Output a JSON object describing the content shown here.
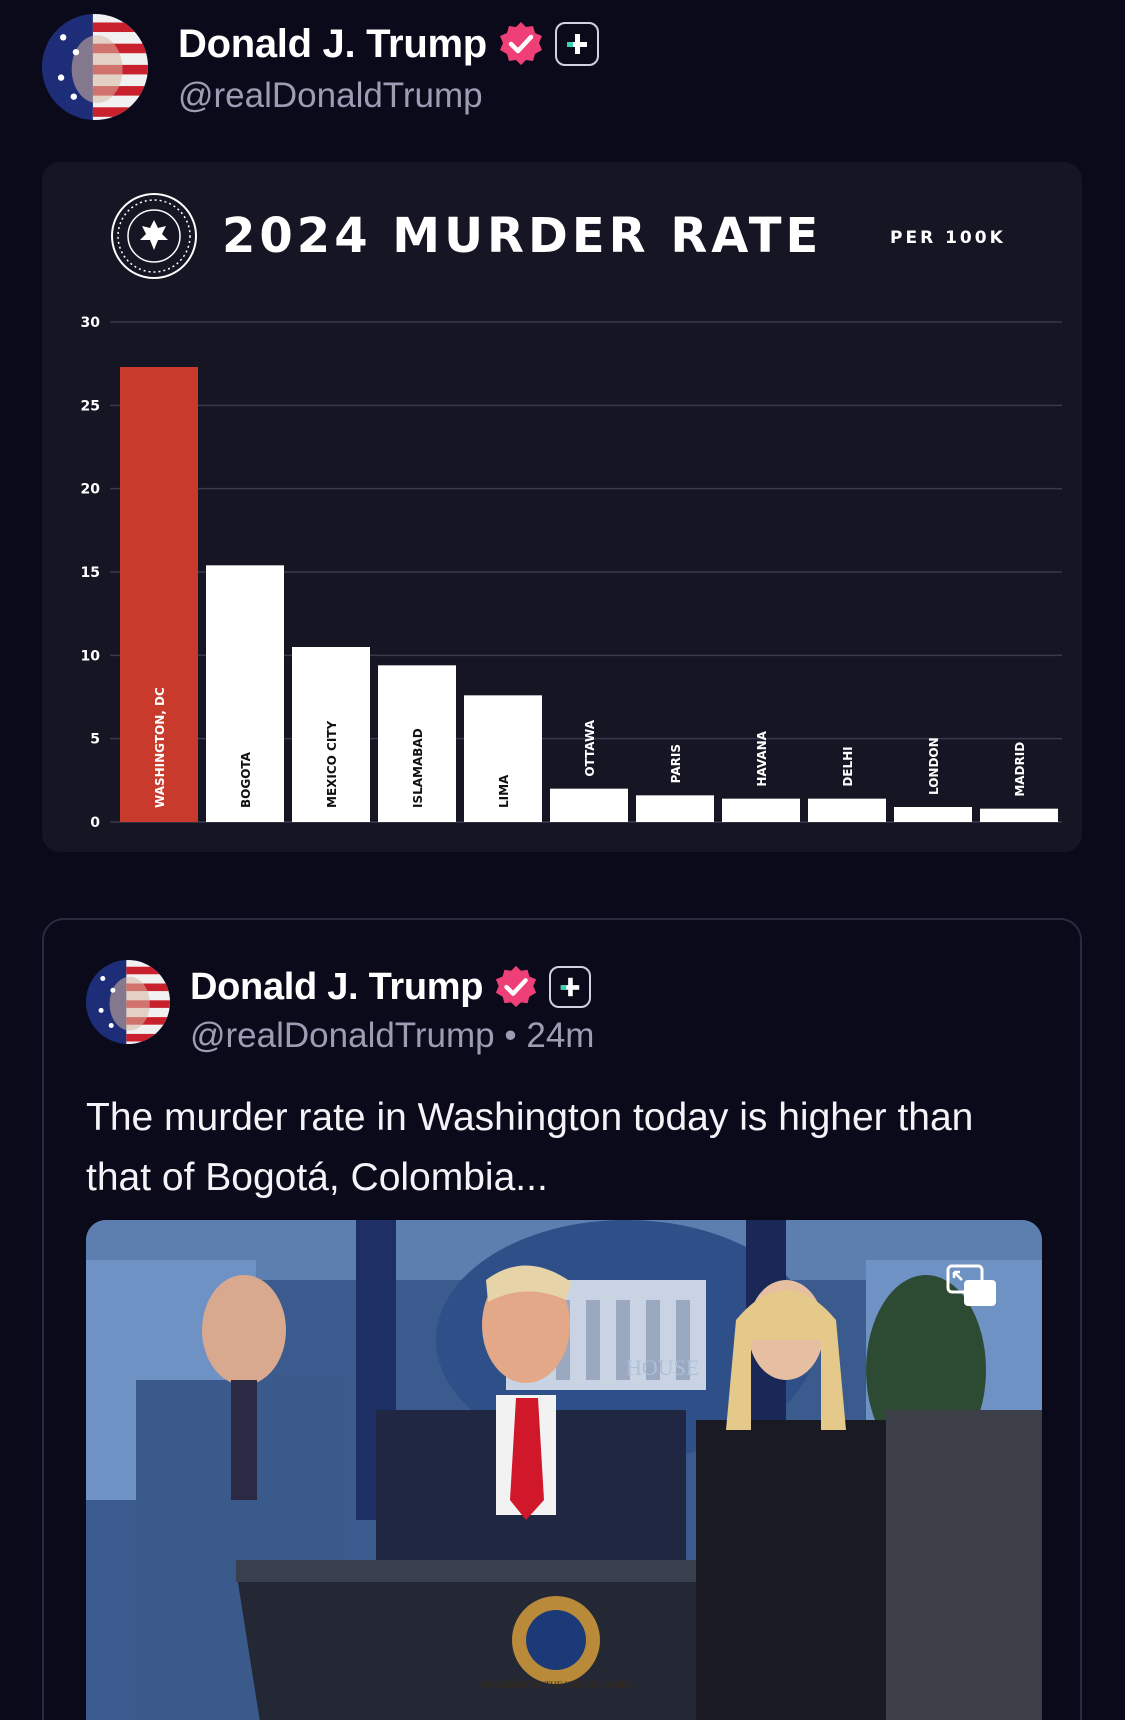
{
  "post": {
    "author": {
      "display_name": "Donald J. Trump",
      "handle": "@realDonaldTrump",
      "verified_badge_color": "#ef3f77",
      "avatar_icon": "american-flag-portrait"
    }
  },
  "chart_data": {
    "type": "bar",
    "title": "2024 MURDER RATE",
    "unit_label": "PER 100K",
    "categories": [
      "WASHINGTON, DC",
      "BOGOTA",
      "MEXICO CITY",
      "ISLAMABAD",
      "LIMA",
      "OTTAWA",
      "PARIS",
      "HAVANA",
      "DELHI",
      "LONDON",
      "MADRID"
    ],
    "values": [
      27.3,
      15.4,
      10.5,
      9.4,
      7.6,
      2.0,
      1.6,
      1.4,
      1.4,
      0.9,
      0.8
    ],
    "highlight_index": 0,
    "highlight_color": "#c83a2b",
    "bar_color": "#ffffff",
    "yticks": [
      "0",
      "5",
      "10",
      "15",
      "20",
      "25",
      "30"
    ],
    "ylim": [
      0,
      30
    ],
    "grid": true,
    "xlabel": "",
    "ylabel": ""
  },
  "quoted_post": {
    "author": {
      "display_name": "Donald J. Trump",
      "handle": "@realDonaldTrump",
      "timestamp": "24m"
    },
    "text": "The murder rate in Washington today is higher than that of Bogotá, Colombia...",
    "media": {
      "kind": "video",
      "backdrop_sign_text": "HOUSE",
      "podium_seal_text": "PRESIDENT OF THE UNITED STATES",
      "icon": "picture-in-picture-icon"
    }
  }
}
